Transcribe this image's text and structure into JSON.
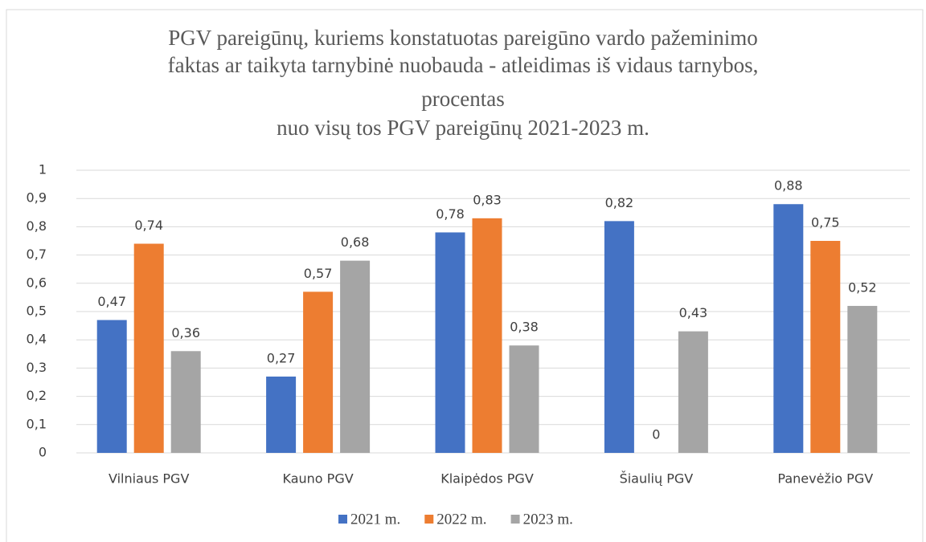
{
  "chart_data": {
    "type": "bar",
    "title": [
      "PGV pareigūnų, kuriems konstatuotas pareigūno vardo pažeminimo",
      "faktas ar taikyta tarnybinė nuobauda - atleidimas iš vidaus tarnybos,",
      "procentas",
      "nuo visų tos PGV pareigūnų 2021-2023 m."
    ],
    "categories": [
      "Vilniaus PGV",
      "Kauno PGV",
      "Klaipėdos PGV",
      "Šiaulių PGV",
      "Panevėžio PGV"
    ],
    "series": [
      {
        "name": "2021 m.",
        "color": "#4472c4",
        "values": [
          0.47,
          0.27,
          0.78,
          0.82,
          0.88
        ],
        "value_labels": [
          "0,47",
          "0,27",
          "0,78",
          "0,82",
          "0,88"
        ]
      },
      {
        "name": "2022 m.",
        "color": "#ed7d31",
        "values": [
          0.74,
          0.57,
          0.83,
          0,
          0.75
        ],
        "value_labels": [
          "0,74",
          "0,57",
          "0,83",
          "0",
          "0,75"
        ]
      },
      {
        "name": "2023 m.",
        "color": "#a5a5a5",
        "values": [
          0.36,
          0.68,
          0.38,
          0.43,
          0.52
        ],
        "value_labels": [
          "0,36",
          "0,68",
          "0,38",
          "0,43",
          "0,52"
        ]
      }
    ],
    "ylim": [
      0,
      1
    ],
    "yticks": [
      0,
      {
        "value": 0.1,
        "label": "0,1"
      },
      {
        "value": 0.2,
        "label": "0,2"
      },
      {
        "value": 0.3,
        "label": "0,3"
      },
      {
        "value": 0.4,
        "label": "0,4"
      },
      {
        "value": 0.5,
        "label": "0,5"
      },
      {
        "value": 0.6,
        "label": "0,6"
      },
      {
        "value": 0.7,
        "label": "0,7"
      },
      {
        "value": 0.8,
        "label": "0,8"
      },
      {
        "value": 0.9,
        "label": "0,9"
      },
      1
    ],
    "grid": true,
    "legend": "bottom"
  }
}
